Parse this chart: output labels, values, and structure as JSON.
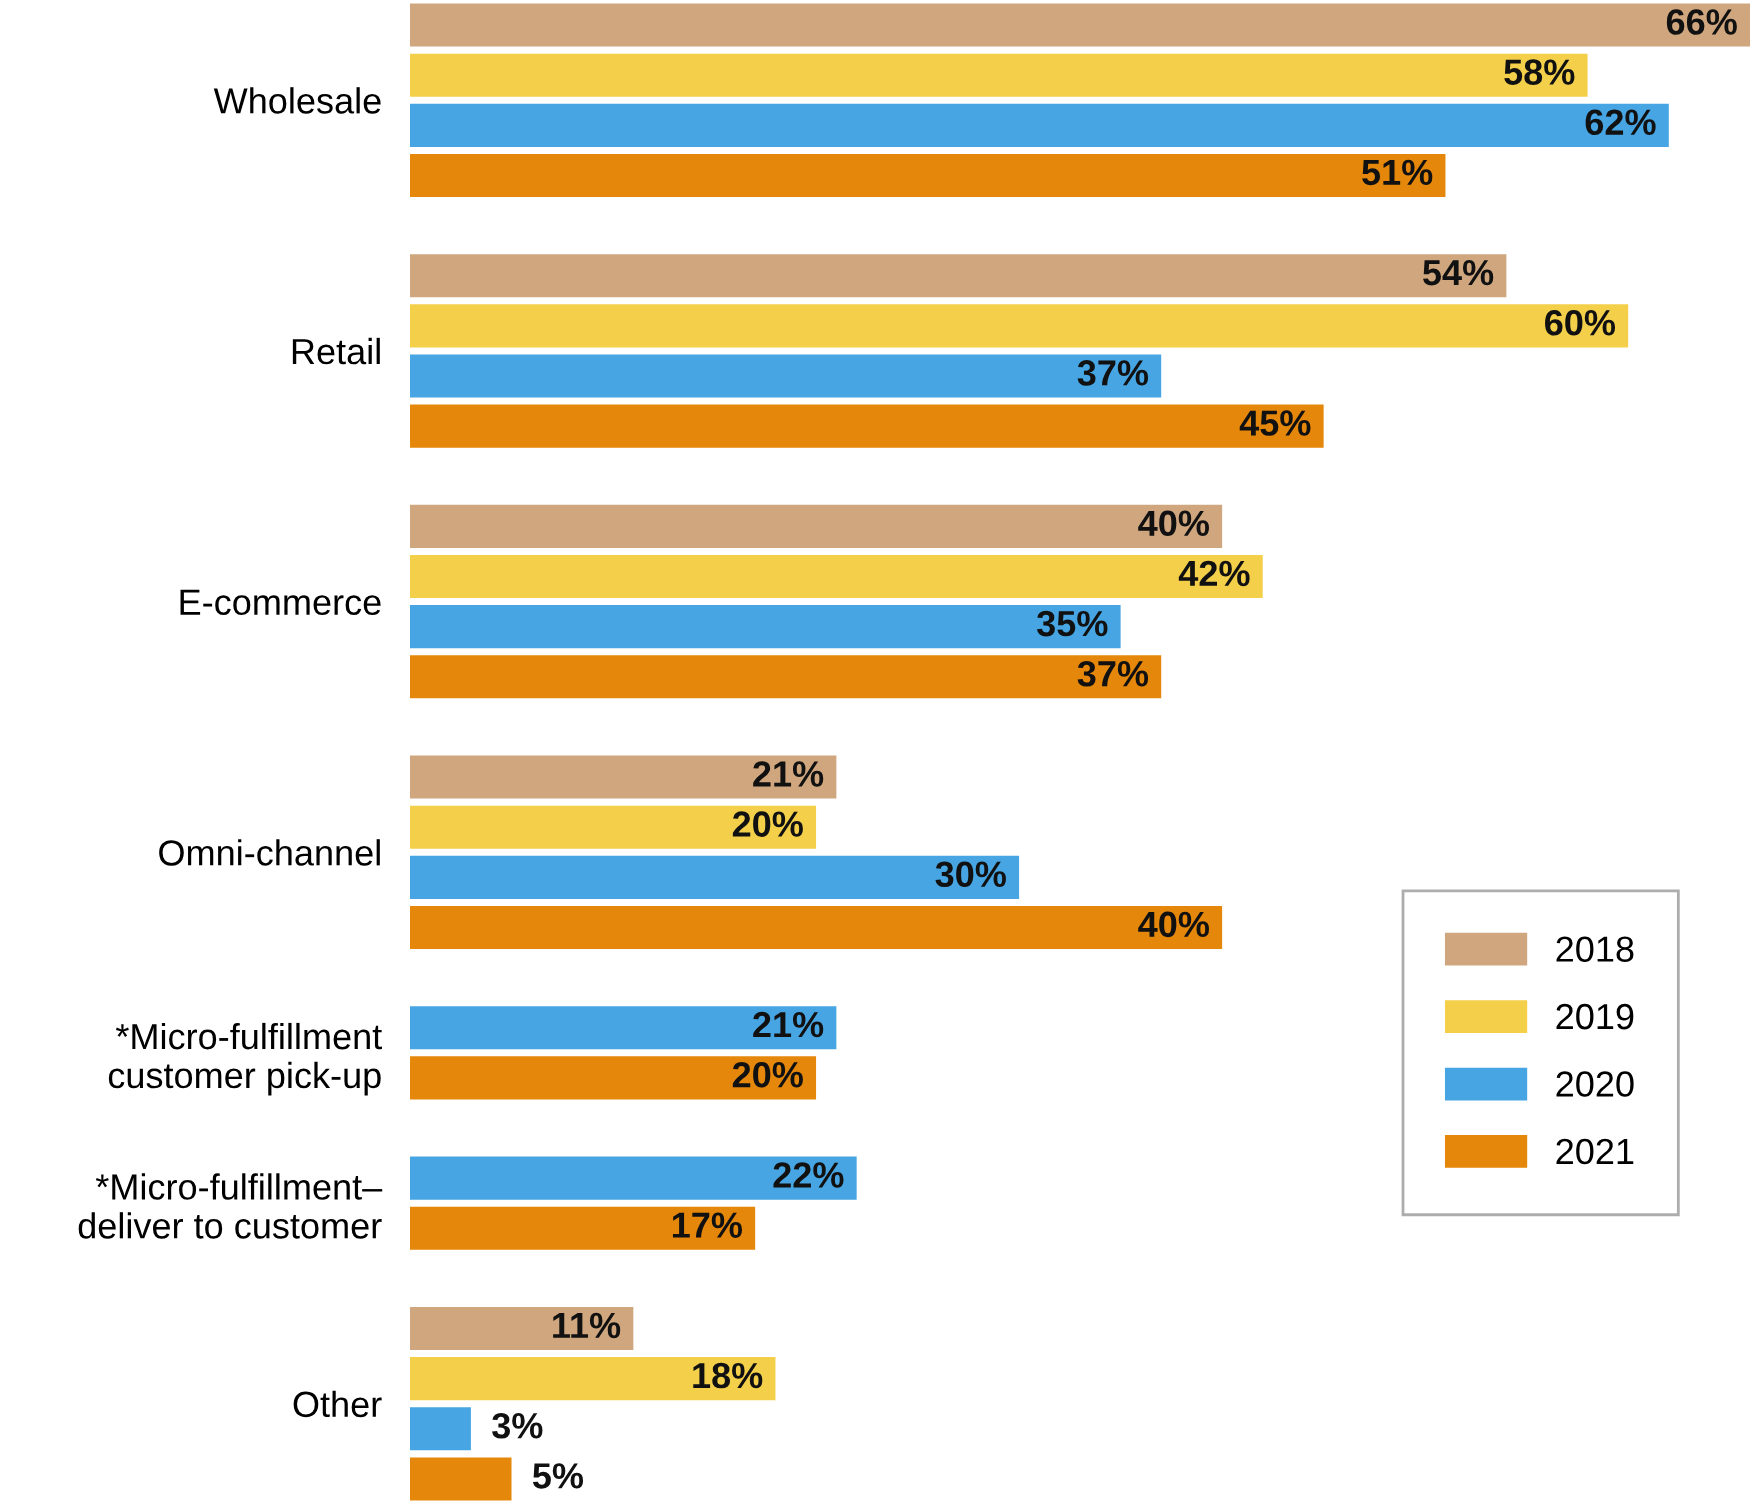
{
  "chart_data": {
    "type": "bar",
    "orientation": "horizontal",
    "categories": [
      "Wholesale",
      "Retail",
      "E-commerce",
      "Omni-channel",
      "*Micro-fulfillment\ncustomer pick-up",
      "*Micro-fulfillment–\ndeliver to customer",
      "Other"
    ],
    "series": [
      {
        "name": "2018",
        "color": "#cfa67e",
        "values": [
          66,
          54,
          40,
          21,
          null,
          null,
          11
        ],
        "value_labels": [
          "66%",
          "54%",
          "40%",
          "21%",
          null,
          null,
          "11%"
        ]
      },
      {
        "name": "2019",
        "color": "#f3cf4a",
        "values": [
          58,
          60,
          42,
          20,
          null,
          null,
          18
        ],
        "value_labels": [
          "58%",
          "60%",
          "42%",
          "20%",
          null,
          null,
          "18%"
        ]
      },
      {
        "name": "2020",
        "color": "#46a5e2",
        "values": [
          62,
          37,
          35,
          30,
          21,
          22,
          3
        ],
        "value_labels": [
          "62%",
          "37%",
          "35%",
          "30%",
          "21%",
          "22%",
          "3%"
        ]
      },
      {
        "name": "2021",
        "color": "#e4870a",
        "values": [
          51,
          45,
          37,
          40,
          20,
          17,
          5
        ],
        "value_labels": [
          "51%",
          "45%",
          "37%",
          "40%",
          "20%",
          "17%",
          "5%"
        ]
      }
    ],
    "legend": "right"
  }
}
